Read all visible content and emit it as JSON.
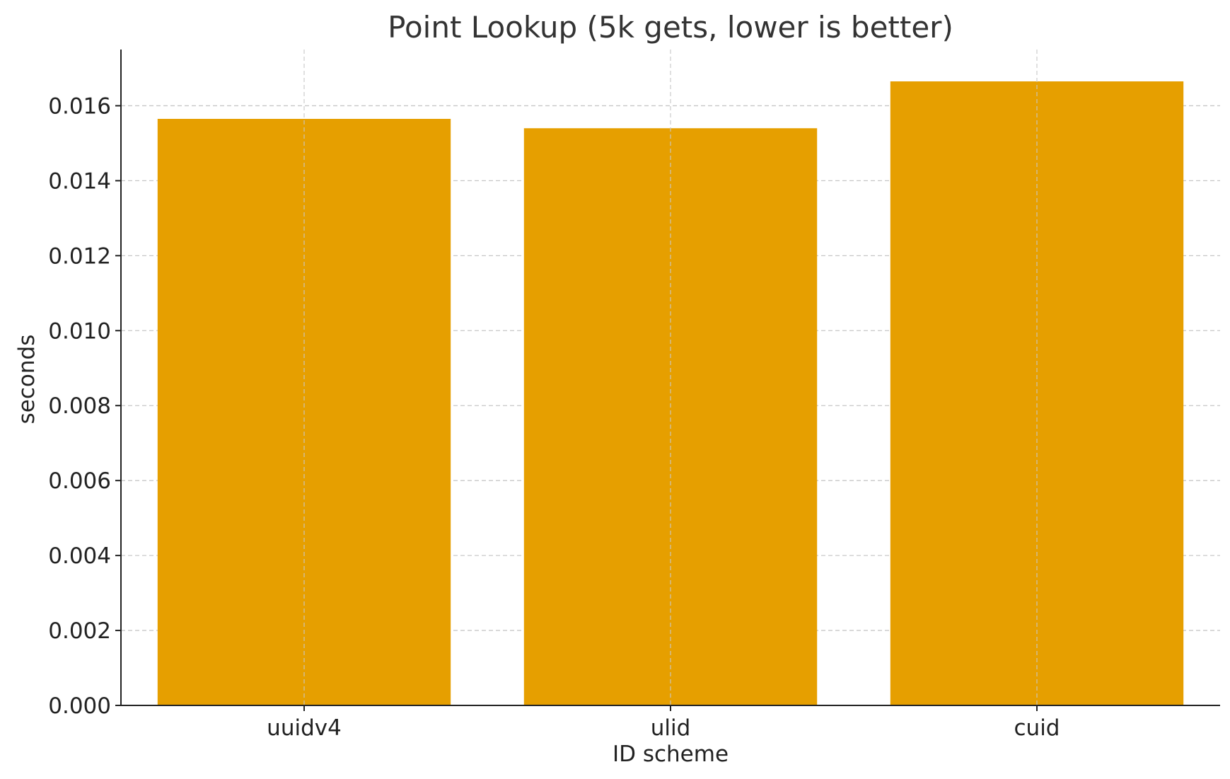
{
  "chart_data": {
    "type": "bar",
    "title": "Point Lookup (5k gets, lower is better)",
    "xlabel": "ID scheme",
    "ylabel": "seconds",
    "categories": [
      "uuidv4",
      "ulid",
      "cuid"
    ],
    "values": [
      0.01565,
      0.0154,
      0.01665
    ],
    "ylim": [
      0,
      0.0175
    ],
    "yticks": [
      "0.000",
      "0.002",
      "0.004",
      "0.006",
      "0.008",
      "0.010",
      "0.012",
      "0.014",
      "0.016"
    ],
    "grid": true,
    "bar_color": "#E69F00"
  }
}
